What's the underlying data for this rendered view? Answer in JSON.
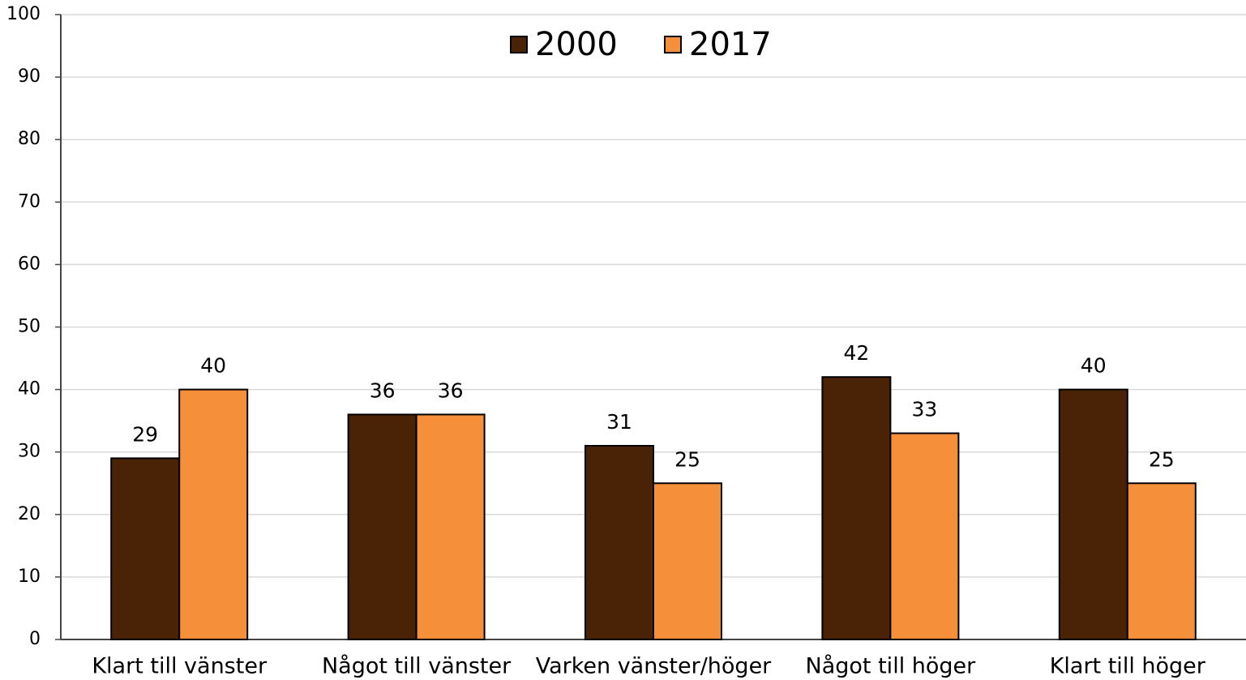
{
  "chart_data": {
    "type": "bar",
    "categories": [
      "Klart till vänster",
      "Något till vänster",
      "Varken vänster/höger",
      "Något till höger",
      "Klart till höger"
    ],
    "series": [
      {
        "name": "2000",
        "color": "#4a2306",
        "values": [
          29,
          36,
          31,
          42,
          40
        ]
      },
      {
        "name": "2017",
        "color": "#f58f3a",
        "values": [
          40,
          36,
          25,
          33,
          25
        ]
      }
    ],
    "ylim": [
      0,
      100
    ],
    "yticks": [
      0,
      10,
      20,
      30,
      40,
      50,
      60,
      70,
      80,
      90,
      100
    ],
    "grid": true
  }
}
